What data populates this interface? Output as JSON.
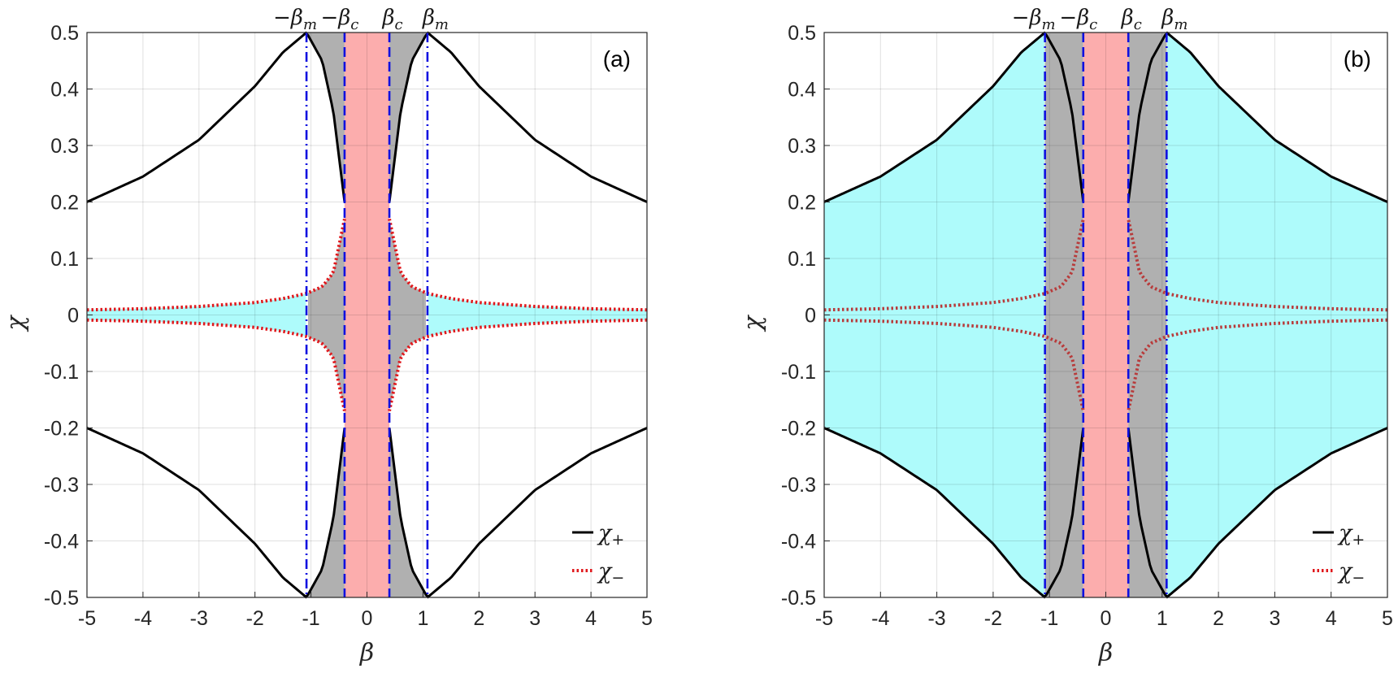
{
  "chart_data": [
    {
      "type": "line",
      "panel_label": "(a)",
      "xlabel": "β",
      "ylabel": "χ",
      "xlim": [
        -5,
        5
      ],
      "ylim": [
        -0.5,
        0.5
      ],
      "x_ticks": [
        "-5",
        "-4",
        "-3",
        "-2",
        "-1",
        "0",
        "1",
        "2",
        "3",
        "4",
        "5"
      ],
      "y_ticks": [
        "0.5",
        "0.4",
        "0.3",
        "0.2",
        "0.1",
        "0",
        "-0.1",
        "-0.2",
        "-0.3",
        "-0.4",
        "-0.5"
      ],
      "grid": true,
      "top_labels": [
        "−βm",
        "−βc",
        "βc",
        "βm"
      ],
      "beta_c": 0.4,
      "beta_m": 1.08,
      "series": [
        {
          "name": "χ+",
          "color": "#000000",
          "style": "solid",
          "x": [
            -5,
            -4,
            -3,
            -2,
            -1.5,
            -1.08,
            -0.8,
            -0.6,
            -0.4
          ],
          "y": [
            0.2,
            0.245,
            0.31,
            0.405,
            0.465,
            0.5,
            0.45,
            0.36,
            0.2
          ]
        },
        {
          "name": "χ−",
          "color": "#e0181c",
          "style": "dotted",
          "x": [
            -5,
            -4,
            -3,
            -2,
            -1.5,
            -1.08,
            -0.8,
            -0.6,
            -0.4
          ],
          "y": [
            0.009,
            0.011,
            0.015,
            0.022,
            0.029,
            0.038,
            0.05,
            0.075,
            0.17
          ]
        }
      ],
      "regions": [
        {
          "name": "cyan",
          "color": "#aefbfb",
          "between": "χ− band for |β| > βm"
        },
        {
          "name": "gray",
          "color": "#b0b0b0",
          "between": "βc < |β| < βm"
        },
        {
          "name": "pink",
          "color": "#fcadad",
          "between": "|β| < βc"
        }
      ],
      "legend": {
        "position": "bottom-right",
        "entries": [
          "χ+",
          "χ−"
        ]
      }
    },
    {
      "type": "line",
      "panel_label": "(b)",
      "xlabel": "β",
      "ylabel": "χ",
      "xlim": [
        -5,
        5
      ],
      "ylim": [
        -0.5,
        0.5
      ],
      "x_ticks": [
        "-5",
        "-4",
        "-3",
        "-2",
        "-1",
        "0",
        "1",
        "2",
        "3",
        "4",
        "5"
      ],
      "y_ticks": [
        "0.5",
        "0.4",
        "0.3",
        "0.2",
        "0.1",
        "0",
        "-0.1",
        "-0.2",
        "-0.3",
        "-0.4",
        "-0.5"
      ],
      "grid": true,
      "top_labels": [
        "−βm",
        "−βc",
        "βc",
        "βm"
      ],
      "beta_c": 0.4,
      "beta_m": 1.08,
      "series": [
        {
          "name": "χ+",
          "color": "#000000",
          "style": "solid",
          "x": [
            -5,
            -4,
            -3,
            -2,
            -1.5,
            -1.08,
            -0.8,
            -0.6,
            -0.4
          ],
          "y": [
            0.2,
            0.245,
            0.31,
            0.405,
            0.465,
            0.5,
            0.45,
            0.36,
            0.2
          ]
        },
        {
          "name": "χ−",
          "color": "#e0181c",
          "style": "dotted",
          "x": [
            -5,
            -4,
            -3,
            -2,
            -1.5,
            -1.08,
            -0.8,
            -0.6,
            -0.4
          ],
          "y": [
            0.009,
            0.011,
            0.015,
            0.022,
            0.029,
            0.038,
            0.05,
            0.075,
            0.17
          ]
        }
      ],
      "regions": [
        {
          "name": "cyan",
          "color": "#aefbfb",
          "between": "χ+ band for |β| > βm"
        },
        {
          "name": "gray",
          "color": "#b0b0b0",
          "between": "βc < |β| < βm"
        },
        {
          "name": "pink",
          "color": "#fcadad",
          "between": "|β| < βc"
        }
      ],
      "legend": {
        "position": "bottom-right",
        "entries": [
          "χ+",
          "χ−"
        ]
      }
    }
  ]
}
